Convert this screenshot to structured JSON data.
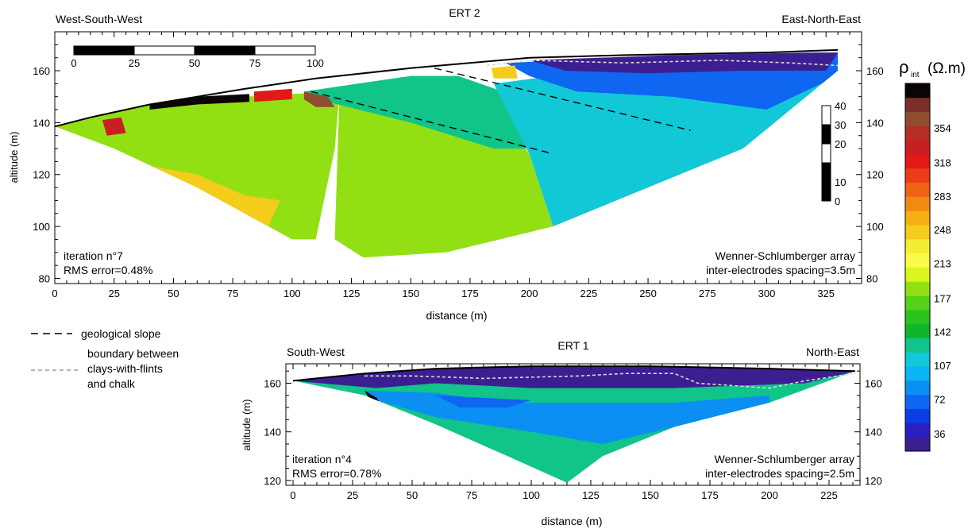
{
  "chart_data": [
    {
      "type": "heatmap",
      "title": "ERT 2",
      "left_label": "West-South-West",
      "right_label": "East-North-East",
      "xlabel": "distance (m)",
      "ylabel": "altitude (m)",
      "xlim": [
        0,
        340
      ],
      "ylim": [
        78,
        175
      ],
      "xticks": [
        0,
        25,
        50,
        75,
        100,
        125,
        150,
        175,
        200,
        225,
        250,
        275,
        300,
        325
      ],
      "yticks": [
        80,
        100,
        120,
        140,
        160
      ],
      "iteration": "iteration n°7",
      "rms": "RMS error=0.48%",
      "array": "Wenner-Schlumberger array",
      "spacing": "inter-electrodes spacing=3.5m",
      "scale_bar": {
        "labels": [
          "0",
          "25",
          "50",
          "75",
          "100"
        ]
      },
      "vertical_scale": {
        "labels": [
          "40",
          "30",
          "20",
          "10",
          "0"
        ]
      },
      "surface": [
        [
          0,
          138.5
        ],
        [
          15,
          142
        ],
        [
          40,
          147
        ],
        [
          80,
          153
        ],
        [
          110,
          157
        ],
        [
          150,
          161
        ],
        [
          200,
          165
        ],
        [
          240,
          166
        ],
        [
          300,
          167
        ],
        [
          330,
          168
        ]
      ],
      "bottom": [
        [
          0,
          138.5
        ],
        [
          25,
          130
        ],
        [
          60,
          115
        ],
        [
          100,
          95
        ],
        [
          130,
          88
        ],
        [
          165,
          90
        ],
        [
          210,
          100
        ],
        [
          250,
          115
        ],
        [
          290,
          130
        ],
        [
          330,
          160
        ]
      ],
      "slope_lines": [
        [
          [
            108,
            152
          ],
          [
            210,
            128
          ]
        ],
        [
          [
            160,
            161
          ],
          [
            268,
            137
          ]
        ]
      ],
      "chalk_boundary": [
        [
          182,
          162
        ],
        [
          200,
          164
        ],
        [
          240,
          163
        ],
        [
          280,
          164
        ],
        [
          310,
          163
        ],
        [
          330,
          162
        ]
      ],
      "regions": [
        {
          "poly": [
            [
              0,
              138.5
            ],
            [
              15,
              142
            ],
            [
              40,
              147
            ],
            [
              80,
              150
            ],
            [
              100,
              151
            ],
            [
              120,
              152
            ],
            [
              118,
              130
            ],
            [
              110,
              95
            ],
            [
              100,
              95
            ],
            [
              60,
              115
            ],
            [
              25,
              130
            ]
          ],
          "value": 190
        },
        {
          "poly": [
            [
              30,
              125
            ],
            [
              60,
              120
            ],
            [
              80,
              112
            ],
            [
              95,
              110
            ],
            [
              90,
              100
            ],
            [
              60,
              110
            ],
            [
              40,
              120
            ]
          ],
          "value": 250
        },
        {
          "poly": [
            [
              120,
              152
            ],
            [
              135,
              155
            ],
            [
              150,
              158
            ],
            [
              180,
              152
            ],
            [
              200,
              128
            ],
            [
              210,
              100
            ],
            [
              165,
              90
            ],
            [
              130,
              88
            ],
            [
              118,
              95
            ]
          ],
          "value": 190
        },
        {
          "poly": [
            [
              105,
              152
            ],
            [
              150,
              158
            ],
            [
              170,
              158
            ],
            [
              195,
              150
            ],
            [
              200,
              130
            ],
            [
              185,
              130
            ],
            [
              150,
              140
            ],
            [
              115,
              148
            ]
          ],
          "value": 135
        },
        {
          "poly": [
            [
              185,
              155
            ],
            [
              210,
              158
            ],
            [
              240,
              155
            ],
            [
              280,
              150
            ],
            [
              300,
              145
            ],
            [
              330,
              158
            ],
            [
              290,
              130
            ],
            [
              250,
              115
            ],
            [
              210,
              100
            ],
            [
              200,
              128
            ]
          ],
          "value": 120
        },
        {
          "poly": [
            [
              190,
              163
            ],
            [
              240,
              165
            ],
            [
              300,
              166
            ],
            [
              330,
              167
            ],
            [
              330,
              158
            ],
            [
              300,
              145
            ],
            [
              260,
              150
            ],
            [
              220,
              152
            ],
            [
              200,
              158
            ]
          ],
          "value": 75
        },
        {
          "poly": [
            [
              200,
              164
            ],
            [
              260,
              166
            ],
            [
              320,
              167
            ],
            [
              330,
              167
            ],
            [
              325,
              160
            ],
            [
              290,
              160
            ],
            [
              250,
              159
            ],
            [
              215,
              160
            ]
          ],
          "value": 25
        },
        {
          "poly": [
            [
              40,
              145
            ],
            [
              60,
              147
            ],
            [
              82,
              148
            ],
            [
              82,
              151
            ],
            [
              60,
              150
            ],
            [
              40,
              147
            ]
          ],
          "value": 395
        },
        {
          "poly": [
            [
              84,
              152
            ],
            [
              100,
              153
            ],
            [
              100,
              149
            ],
            [
              84,
              148
            ]
          ],
          "value": 320
        },
        {
          "poly": [
            [
              105,
              152
            ],
            [
              115,
              150
            ],
            [
              118,
              146
            ],
            [
              110,
              146
            ],
            [
              105,
              149
            ]
          ],
          "value": 370
        },
        {
          "poly": [
            [
              20,
              141
            ],
            [
              28,
              142
            ],
            [
              30,
              136
            ],
            [
              22,
              135
            ]
          ],
          "value": 340
        },
        {
          "poly": [
            [
              184,
              161
            ],
            [
              194,
              162
            ],
            [
              195,
              157
            ],
            [
              185,
              157
            ]
          ],
          "value": 250
        }
      ]
    },
    {
      "type": "heatmap",
      "title": "ERT 1",
      "left_label": "South-West",
      "right_label": "North-East",
      "xlabel": "distance (m)",
      "ylabel": "altitude (m)",
      "xlim": [
        -3,
        238
      ],
      "ylim": [
        118,
        168
      ],
      "xticks": [
        0,
        25,
        50,
        75,
        100,
        125,
        150,
        175,
        200,
        225
      ],
      "yticks": [
        120,
        140,
        160
      ],
      "iteration": "iteration n°4",
      "rms": "RMS error=0.78%",
      "array": "Wenner-Schlumberger array",
      "spacing": "inter-electrodes spacing=2.5m",
      "surface": [
        [
          0,
          161
        ],
        [
          30,
          164
        ],
        [
          60,
          166
        ],
        [
          100,
          167
        ],
        [
          150,
          167
        ],
        [
          200,
          166
        ],
        [
          236,
          165
        ]
      ],
      "bottom": [
        [
          0,
          161
        ],
        [
          30,
          155
        ],
        [
          60,
          143
        ],
        [
          90,
          130
        ],
        [
          115,
          119
        ],
        [
          130,
          130
        ],
        [
          160,
          142
        ],
        [
          200,
          152
        ],
        [
          236,
          165
        ]
      ],
      "chalk_boundary": [
        [
          30,
          163
        ],
        [
          50,
          163
        ],
        [
          80,
          162
        ],
        [
          120,
          163
        ],
        [
          140,
          164
        ],
        [
          160,
          164
        ],
        [
          170,
          160
        ],
        [
          200,
          158
        ],
        [
          215,
          161
        ],
        [
          236,
          164
        ]
      ],
      "regions": [
        {
          "poly": [
            [
              0,
              161
            ],
            [
              30,
              164
            ],
            [
              60,
              166
            ],
            [
              100,
              167
            ],
            [
              150,
              167
            ],
            [
              200,
              166
            ],
            [
              236,
              165
            ],
            [
              200,
              152
            ],
            [
              160,
              142
            ],
            [
              130,
              130
            ],
            [
              115,
              119
            ],
            [
              90,
              130
            ],
            [
              60,
              143
            ],
            [
              30,
              155
            ]
          ],
          "value": 130
        },
        {
          "poly": [
            [
              30,
              157
            ],
            [
              60,
              156
            ],
            [
              90,
              152
            ],
            [
              120,
              152
            ],
            [
              160,
              152
            ],
            [
              200,
              155
            ],
            [
              200,
              152
            ],
            [
              160,
              142
            ],
            [
              130,
              135
            ],
            [
              100,
              140
            ],
            [
              60,
              146
            ],
            [
              35,
              153
            ]
          ],
          "value": 80
        },
        {
          "poly": [
            [
              60,
              155
            ],
            [
              100,
              153
            ],
            [
              90,
              150
            ],
            [
              70,
              150
            ]
          ],
          "value": 65
        },
        {
          "poly": [
            [
              30,
              157
            ],
            [
              33,
              152
            ],
            [
              38,
              150
            ],
            [
              35,
              154
            ]
          ],
          "value": 395
        },
        {
          "poly": [
            [
              0,
              161
            ],
            [
              30,
              164
            ],
            [
              60,
              166
            ],
            [
              100,
              167
            ],
            [
              150,
              167
            ],
            [
              200,
              166
            ],
            [
              236,
              165
            ],
            [
              215,
              160
            ],
            [
              160,
              158
            ],
            [
              100,
              158
            ],
            [
              60,
              160
            ],
            [
              35,
              158
            ]
          ],
          "value": 25
        }
      ]
    }
  ],
  "legend": {
    "slope_label": "geological slope",
    "boundary_lines": [
      "boundary between",
      "clays-with-flints",
      "and chalk"
    ]
  },
  "colorbar": {
    "title": "ρ",
    "subscript": "int",
    "unit": "(Ω.m)",
    "min": 18,
    "max": 400,
    "ticks": [
      36,
      72,
      107,
      142,
      177,
      213,
      248,
      283,
      318,
      354
    ],
    "colors": [
      "#3b1f91",
      "#2c1fc2",
      "#0b3fe6",
      "#0f66f0",
      "#0b8ff2",
      "#0bb4f4",
      "#12c8d6",
      "#11c48a",
      "#0fb52b",
      "#2ac41d",
      "#57d21a",
      "#92e014",
      "#d8f51c",
      "#fbfb4a",
      "#f4ed34",
      "#f3cc1c",
      "#f5ae13",
      "#f28a12",
      "#f06214",
      "#ec3c18",
      "#e11a16",
      "#c71f22",
      "#b52d25",
      "#8f4d2f",
      "#7b2f26",
      "#0a0505"
    ]
  }
}
